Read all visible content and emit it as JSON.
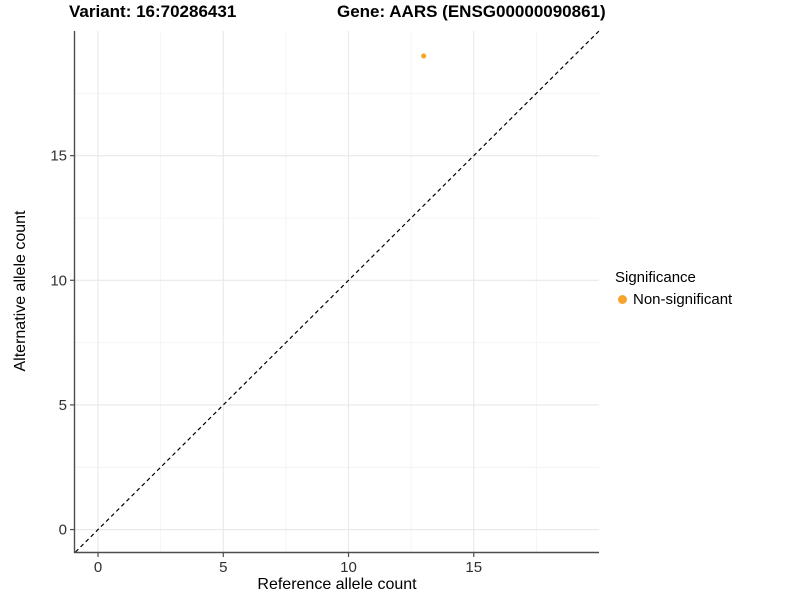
{
  "chart_data": {
    "type": "scatter",
    "titles": {
      "left": "Variant: 16:70286431",
      "right": "Gene: AARS (ENSG00000090861)"
    },
    "xlabel": "Reference allele count",
    "ylabel": "Alternative allele count",
    "xlim": [
      -0.92,
      20
    ],
    "ylim": [
      -0.9,
      20
    ],
    "xticks": [
      0,
      5,
      10,
      15
    ],
    "yticks": [
      0,
      5,
      10,
      15
    ],
    "minor_ticks": [
      2.5,
      7.5,
      12.5,
      17.5
    ],
    "grid": true,
    "points": [
      {
        "x": 13,
        "y": 19,
        "significance": "Non-significant",
        "color": "#F8A42C",
        "radius": 2.6
      }
    ],
    "identity_line": {
      "style": "dashed",
      "slope": 1,
      "intercept": 0,
      "color": "#000000"
    },
    "legend": {
      "title": "Significance",
      "position": "right",
      "items": [
        {
          "label": "Non-significant",
          "color": "#F8A42C"
        }
      ]
    },
    "colors": {
      "background": "#FFFFFF",
      "grid_major": "#E8E8E8",
      "grid_minor": "#F4F4F4",
      "axis_line": "#4D4D4D",
      "tick_mark": "#4D4D4D",
      "tick_label": "#303030"
    }
  }
}
